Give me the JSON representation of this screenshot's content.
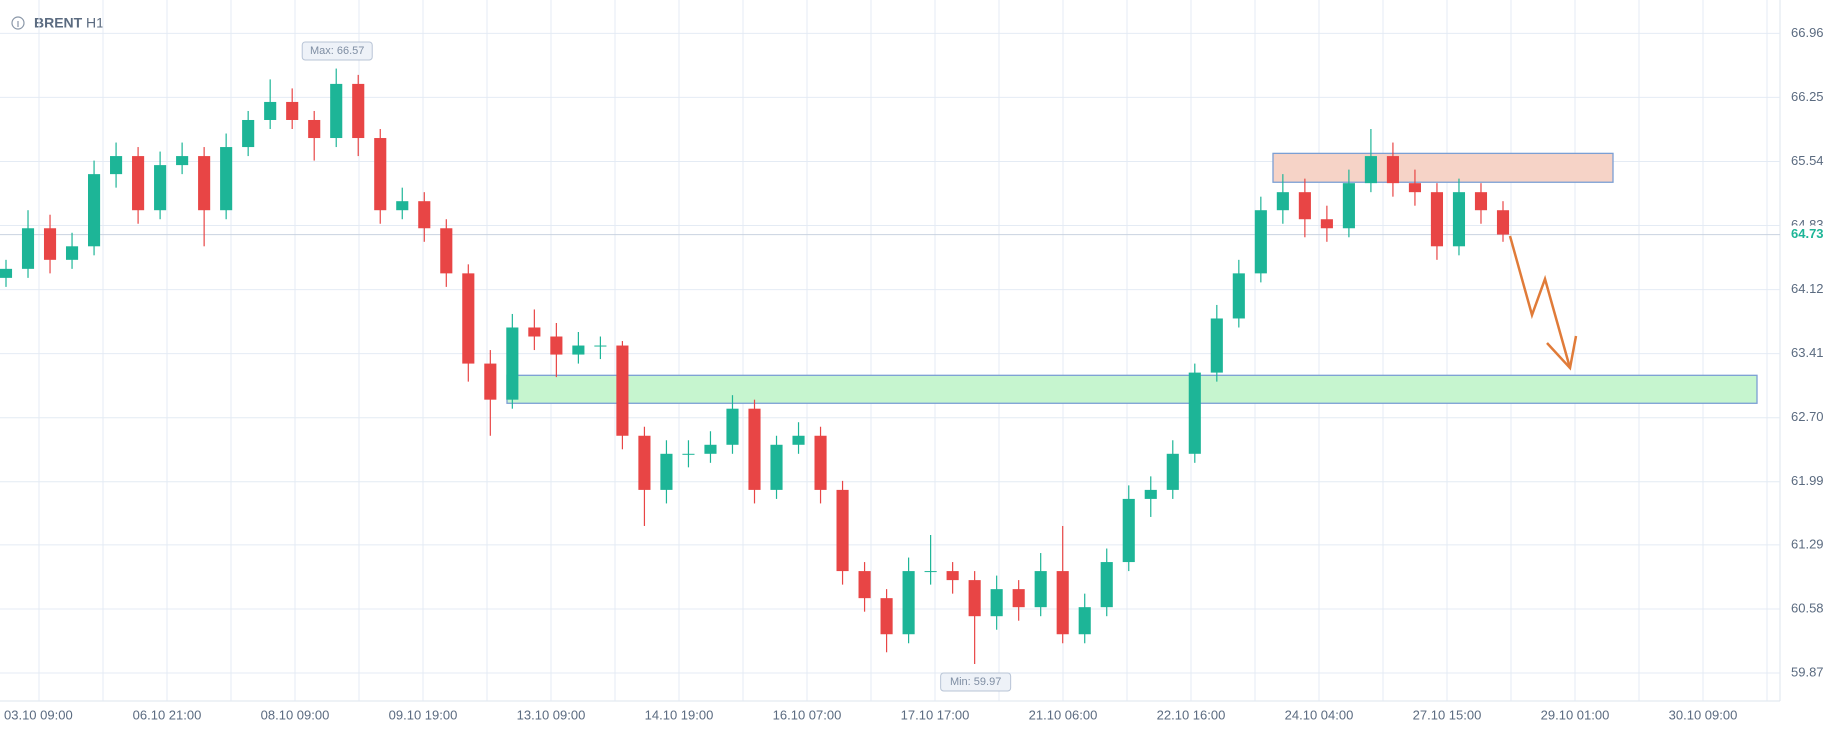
{
  "chart_data": {
    "type": "candlestick",
    "title": "BRENT",
    "subtitle": "H1",
    "categories": [
      "03.10 09:00",
      "06.10 21:00",
      "08.10 09:00",
      "09.10 19:00",
      "13.10 09:00",
      "14.10 19:00",
      "16.10 07:00",
      "17.10 17:00",
      "21.10 06:00",
      "22.10 16:00",
      "24.10 04:00",
      "27.10 15:00",
      "29.10 01:00",
      "30.10 09:00"
    ],
    "ylim": [
      59.56,
      67.33
    ],
    "yticks": [
      59.87,
      60.58,
      61.29,
      61.99,
      {
        "value": 62.7,
        "label": "62.70"
      },
      63.41,
      64.12,
      64.83,
      65.54,
      66.25,
      66.96
    ],
    "grid": true,
    "up_color": "#1db597",
    "down_color": "#e84545",
    "open": [
      64.25,
      64.35,
      64.8,
      64.45,
      64.6,
      65.4,
      65.6,
      65.0,
      65.5,
      65.6,
      65.0,
      65.7,
      66.0,
      66.2,
      66.0,
      65.8,
      66.4,
      65.8,
      65.0,
      65.1,
      64.8,
      64.3,
      63.3,
      62.9,
      63.7,
      63.6,
      63.4,
      63.5,
      63.5,
      62.5,
      61.9,
      62.3,
      62.3,
      62.4,
      62.8,
      61.9,
      62.4,
      62.5,
      61.9,
      61.0,
      60.7,
      60.3,
      61.0,
      61.0,
      60.9,
      60.5,
      60.8,
      60.6,
      61.0,
      60.3,
      60.6,
      61.1,
      61.8,
      61.9,
      62.3,
      63.2,
      63.8,
      64.3,
      65.0,
      65.2,
      64.9,
      64.8,
      65.3,
      65.6,
      65.3,
      65.2,
      64.6,
      65.2,
      65.0
    ],
    "high": [
      64.45,
      65.0,
      64.95,
      64.75,
      65.55,
      65.75,
      65.7,
      65.65,
      65.75,
      65.7,
      65.85,
      66.1,
      66.45,
      66.35,
      66.1,
      66.57,
      66.5,
      65.9,
      65.25,
      65.2,
      64.9,
      64.4,
      63.45,
      63.85,
      63.9,
      63.75,
      63.65,
      63.6,
      63.55,
      62.6,
      62.45,
      62.45,
      62.55,
      62.95,
      62.9,
      62.5,
      62.65,
      62.6,
      62.0,
      61.1,
      60.8,
      61.15,
      61.4,
      61.1,
      61.0,
      60.95,
      60.9,
      61.2,
      61.5,
      60.75,
      61.25,
      61.95,
      62.05,
      62.45,
      63.3,
      63.95,
      64.45,
      65.15,
      65.4,
      65.35,
      65.05,
      65.45,
      65.9,
      65.75,
      65.45,
      65.3,
      65.35,
      65.3,
      65.1
    ],
    "low": [
      64.15,
      64.25,
      64.3,
      64.35,
      64.5,
      65.25,
      64.85,
      64.9,
      65.4,
      64.6,
      64.9,
      65.6,
      65.9,
      65.9,
      65.55,
      65.7,
      65.6,
      64.85,
      64.9,
      64.65,
      64.15,
      63.1,
      62.5,
      62.8,
      63.45,
      63.15,
      63.3,
      63.35,
      62.35,
      61.5,
      61.75,
      62.15,
      62.2,
      62.3,
      61.75,
      61.8,
      62.3,
      61.75,
      60.85,
      60.55,
      60.1,
      60.2,
      60.85,
      60.75,
      59.97,
      60.35,
      60.45,
      60.5,
      60.2,
      60.2,
      60.5,
      61.0,
      61.6,
      61.8,
      62.2,
      63.1,
      63.7,
      64.2,
      64.85,
      64.7,
      64.65,
      64.7,
      65.2,
      65.15,
      65.05,
      64.45,
      64.5,
      64.85,
      64.65
    ],
    "close": [
      64.35,
      64.8,
      64.45,
      64.6,
      65.4,
      65.6,
      65.0,
      65.5,
      65.6,
      65.0,
      65.7,
      66.0,
      66.2,
      66.0,
      65.8,
      66.4,
      65.8,
      65.0,
      65.1,
      64.8,
      64.3,
      63.3,
      62.9,
      63.7,
      63.6,
      63.4,
      63.5,
      63.5,
      62.5,
      61.9,
      62.3,
      62.3,
      62.4,
      62.8,
      61.9,
      62.4,
      62.5,
      61.9,
      61.0,
      60.7,
      60.3,
      61.0,
      61.0,
      60.9,
      60.5,
      60.8,
      60.6,
      61.0,
      60.3,
      60.6,
      61.1,
      61.8,
      61.9,
      62.3,
      63.2,
      63.8,
      64.3,
      65.0,
      65.2,
      64.9,
      64.8,
      65.3,
      65.6,
      65.3,
      65.2,
      64.6,
      65.2,
      65.0,
      64.73
    ],
    "last_price": 64.73,
    "max_label": "Max: 66.57",
    "min_label": "Min: 59.97",
    "zones": [
      {
        "low": 62.86,
        "high": 63.17,
        "color": "#c6f5cf"
      },
      {
        "low": 65.31,
        "high": 65.63,
        "color": "#f6d3c7"
      }
    ]
  }
}
